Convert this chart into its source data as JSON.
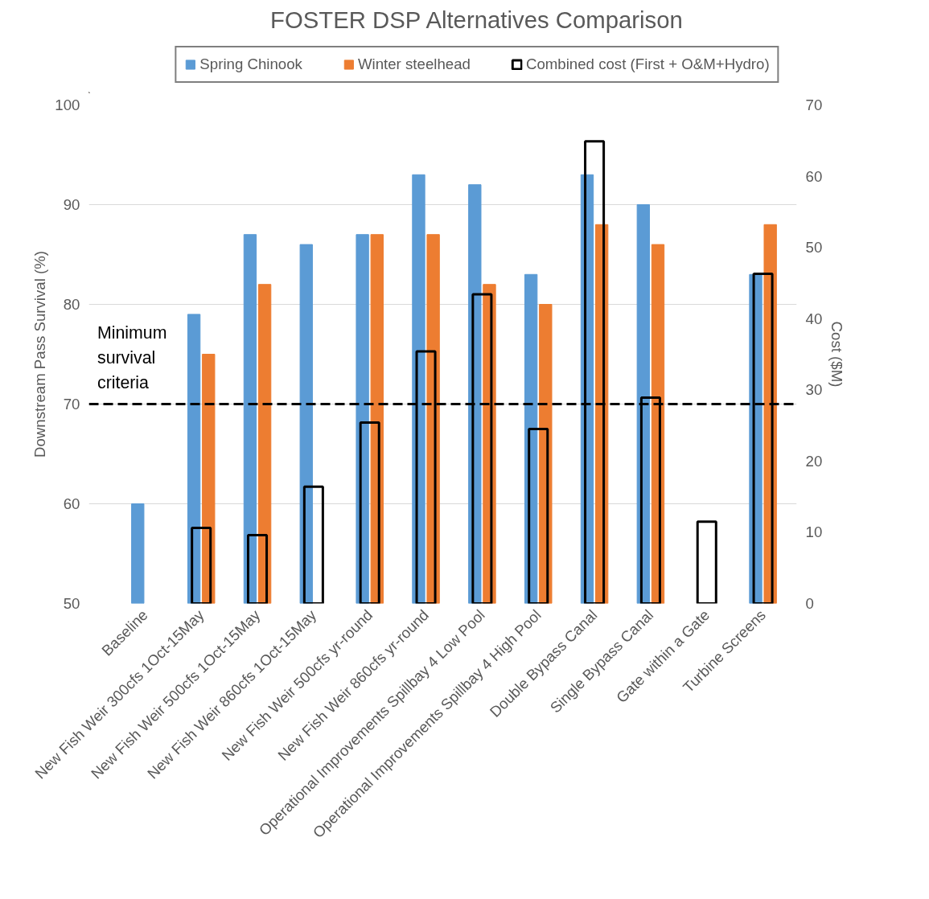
{
  "chart_data": {
    "type": "bar",
    "title": "FOSTER DSP Alternatives Comparison",
    "ylabel": "Downstream Pass Survival (%)",
    "y2label": "Cost ($M)",
    "categories": [
      "Baseline",
      "New Fish Weir 300cfs 1Oct-15May",
      "New Fish Weir 500cfs 1Oct-15May",
      "New Fish Weir 860cfs 1Oct-15May",
      "New Fish Weir 500cfs yr-round",
      "New Fish Weir 860cfs yr-round",
      "Operational Improvements Spillbay 4 Low Pool",
      "Operational Improvements Spillbay 4 High Pool",
      "Double Bypass Canal",
      "Single Bypass Canal",
      "Gate within a Gate",
      "Turbine Screens"
    ],
    "series": [
      {
        "name": "Spring Chinook",
        "color": "#5b9bd5",
        "values": [
          60,
          79,
          87,
          86,
          87,
          93,
          92,
          83,
          93,
          90,
          null,
          83
        ]
      },
      {
        "name": "Winter steelhead",
        "color": "#ed7d31",
        "values": [
          null,
          75,
          82,
          null,
          87,
          87,
          82,
          80,
          88,
          86,
          null,
          88
        ]
      },
      {
        "name": "Combined cost (First + O&M+Hydro)",
        "color": "#000000",
        "axis": "y2",
        "values": [
          null,
          10.6,
          9.6,
          16.4,
          25.4,
          35.4,
          43.4,
          24.5,
          64.9,
          28.9,
          11.5,
          46.3
        ]
      }
    ],
    "ylim": [
      50,
      100
    ],
    "yticks": [
      50,
      60,
      70,
      80,
      90,
      100
    ],
    "y2lim": [
      0,
      70
    ],
    "y2ticks": [
      0,
      10,
      20,
      30,
      40,
      50,
      60,
      70
    ],
    "ref_lines": [
      {
        "axis": "y",
        "value": 70,
        "label": "Minimum survival criteria",
        "color": "#000000",
        "line_style": "dashed"
      }
    ],
    "grid": "y",
    "legend": "top"
  }
}
